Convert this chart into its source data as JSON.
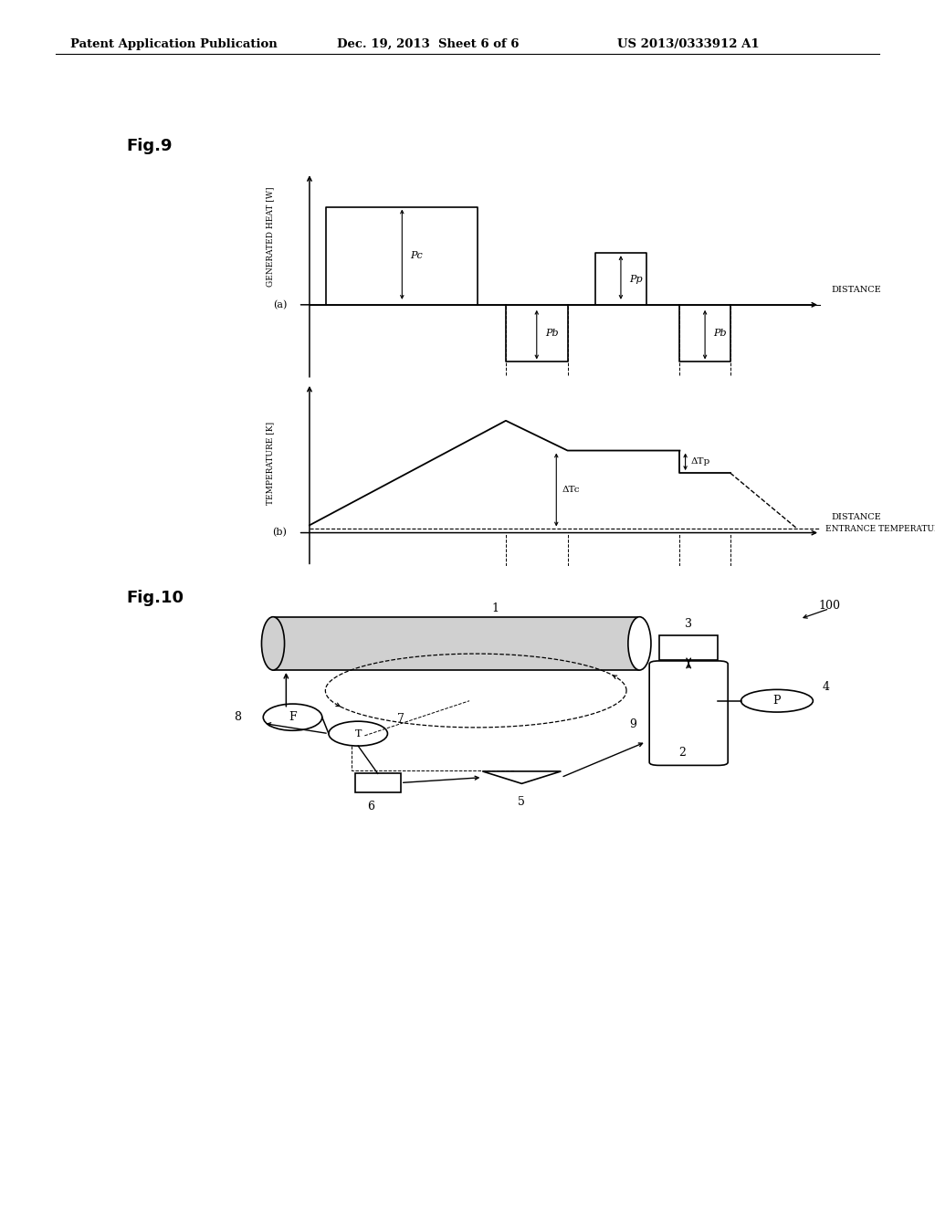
{
  "bg_color": "#ffffff",
  "header_left": "Patent Application Publication",
  "header_mid": "Dec. 19, 2013  Sheet 6 of 6",
  "header_right": "US 2013/0333912 A1",
  "fig9_label": "Fig.9",
  "fig10_label": "Fig.10"
}
